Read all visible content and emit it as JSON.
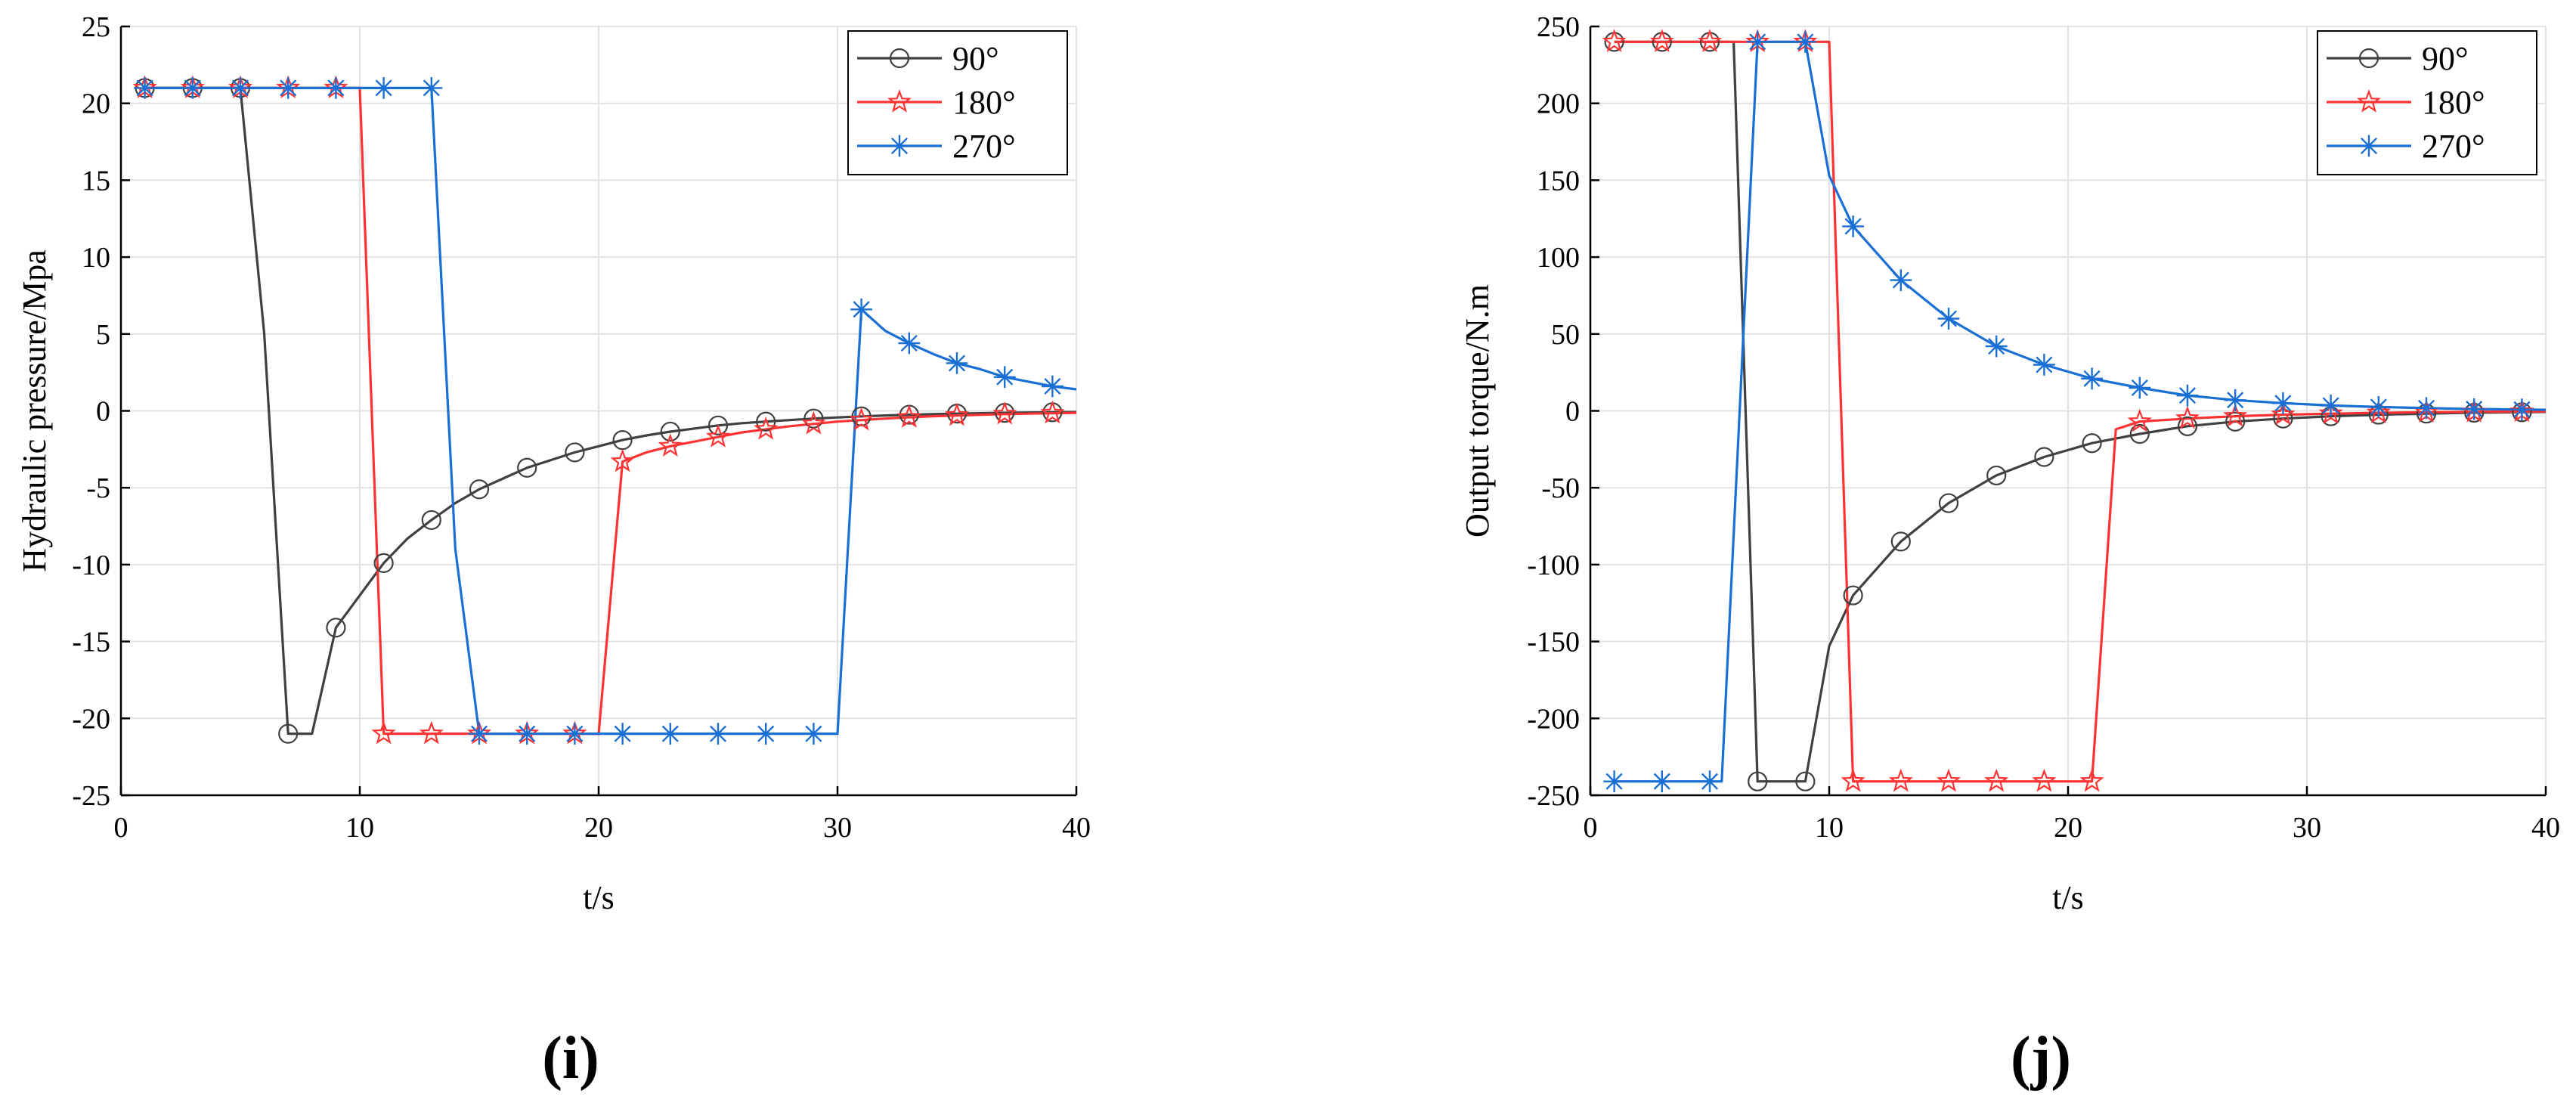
{
  "figure_labels": {
    "left": "(i)",
    "right": "(j)"
  },
  "chart_data": [
    {
      "id": "i",
      "type": "line",
      "title": "",
      "xlabel": "t/s",
      "ylabel": "Hydraulic pressure/Mpa",
      "xlim": [
        0,
        40
      ],
      "ylim": [
        -25,
        25
      ],
      "xticks": [
        0,
        10,
        20,
        30,
        40
      ],
      "yticks": [
        -25,
        -20,
        -15,
        -10,
        -5,
        0,
        5,
        10,
        15,
        20,
        25
      ],
      "grid": true,
      "legend_position": "top-right",
      "series": [
        {
          "name": "90°",
          "color": "#404040",
          "marker": "circle",
          "x": [
            1,
            2,
            3,
            4,
            5,
            6,
            7,
            7.5,
            8,
            9,
            10,
            11,
            12,
            13,
            14,
            15,
            16,
            17,
            18,
            19,
            20,
            21,
            22,
            23,
            24,
            25,
            26,
            27,
            28,
            29,
            30,
            31,
            32,
            33,
            34,
            35,
            36,
            37,
            38,
            39,
            40
          ],
          "y": [
            21,
            21,
            21,
            21,
            21,
            5,
            -21,
            -21,
            -21,
            -14.1,
            -12,
            -9.9,
            -8.3,
            -7.1,
            -6,
            -5.1,
            -4.4,
            -3.7,
            -3.2,
            -2.7,
            -2.3,
            -1.9,
            -1.6,
            -1.35,
            -1.15,
            -0.95,
            -0.8,
            -0.7,
            -0.6,
            -0.5,
            -0.43,
            -0.36,
            -0.3,
            -0.25,
            -0.21,
            -0.18,
            -0.15,
            -0.13,
            -0.11,
            -0.09,
            -0.08
          ],
          "markers_x": [
            1,
            3,
            5,
            7,
            9,
            11,
            13,
            15,
            17,
            19,
            21,
            23,
            25,
            27,
            29,
            31,
            33,
            35,
            37,
            39
          ]
        },
        {
          "name": "180°",
          "color": "#ff3333",
          "marker": "star",
          "x": [
            1,
            3,
            5,
            7,
            9,
            10,
            11,
            13,
            15,
            17,
            19,
            20,
            21,
            22,
            23,
            24,
            25,
            26,
            27,
            28,
            29,
            30,
            31,
            32,
            33,
            34,
            35,
            36,
            37,
            38,
            39,
            40
          ],
          "y": [
            21,
            21,
            21,
            21,
            21,
            21,
            -21,
            -21,
            -21,
            -21,
            -21,
            -21,
            -3.3,
            -2.7,
            -2.3,
            -2,
            -1.7,
            -1.4,
            -1.2,
            -1,
            -0.85,
            -0.7,
            -0.6,
            -0.5,
            -0.42,
            -0.35,
            -0.3,
            -0.25,
            -0.21,
            -0.18,
            -0.15,
            -0.13
          ],
          "markers_x": [
            1,
            3,
            5,
            7,
            9,
            11,
            13,
            15,
            17,
            19,
            21,
            23,
            25,
            27,
            29,
            31,
            33,
            35,
            37,
            39
          ]
        },
        {
          "name": "270°",
          "color": "#1a6fd4",
          "marker": "asterisk",
          "x": [
            1,
            3,
            5,
            7,
            9,
            11,
            13,
            14,
            15,
            17,
            19,
            21,
            23,
            25,
            27,
            29,
            30,
            31,
            32,
            33,
            34,
            35,
            36,
            37,
            38,
            39,
            40
          ],
          "y": [
            21,
            21,
            21,
            21,
            21,
            21,
            21,
            -9,
            -21,
            -21,
            -21,
            -21,
            -21,
            -21,
            -21,
            -21,
            -21,
            6.6,
            5.2,
            4.4,
            3.7,
            3.1,
            2.7,
            2.2,
            1.9,
            1.6,
            1.4
          ],
          "markers_x": [
            1,
            3,
            5,
            7,
            9,
            11,
            13,
            15,
            17,
            19,
            21,
            23,
            25,
            27,
            29,
            31,
            33,
            35,
            37,
            39
          ]
        }
      ]
    },
    {
      "id": "j",
      "type": "line",
      "title": "",
      "xlabel": "t/s",
      "ylabel": "Output torque/N.m",
      "xlim": [
        0,
        40
      ],
      "ylim": [
        -250,
        250
      ],
      "xticks": [
        0,
        10,
        20,
        30,
        40
      ],
      "yticks": [
        -250,
        -200,
        -150,
        -100,
        -50,
        0,
        50,
        100,
        150,
        200,
        250
      ],
      "grid": true,
      "legend_position": "top-right",
      "series": [
        {
          "name": "90°",
          "color": "#404040",
          "marker": "circle",
          "x": [
            1,
            3,
            5,
            6,
            7,
            9,
            10,
            11,
            13,
            15,
            17,
            19,
            21,
            23,
            25,
            27,
            29,
            31,
            33,
            35,
            37,
            39,
            40
          ],
          "y": [
            240,
            240,
            240,
            240,
            -241,
            -241,
            -153,
            -120,
            -85,
            -60,
            -42,
            -30,
            -21,
            -15,
            -10,
            -7,
            -5,
            -3.5,
            -2.5,
            -1.8,
            -1.2,
            -0.9,
            -0.7
          ],
          "markers_x": [
            1,
            3,
            5,
            7,
            9,
            11,
            13,
            15,
            17,
            19,
            21,
            23,
            25,
            27,
            29,
            31,
            33,
            35,
            37,
            39
          ]
        },
        {
          "name": "180°",
          "color": "#ff3333",
          "marker": "star",
          "x": [
            1,
            3,
            5,
            7,
            9,
            10,
            11,
            13,
            15,
            17,
            19,
            21,
            22,
            23,
            25,
            27,
            29,
            31,
            33,
            35,
            37,
            39,
            40
          ],
          "y": [
            240,
            240,
            240,
            240,
            240,
            240,
            -241,
            -241,
            -241,
            -241,
            -241,
            -241,
            -12,
            -7,
            -5,
            -3.5,
            -2.5,
            -1.8,
            -1.3,
            -0.9,
            -0.7,
            -0.5,
            -0.4
          ],
          "markers_x": [
            1,
            3,
            5,
            7,
            9,
            11,
            13,
            15,
            17,
            19,
            21,
            23,
            25,
            27,
            29,
            31,
            33,
            35,
            37,
            39
          ]
        },
        {
          "name": "270°",
          "color": "#1a6fd4",
          "marker": "asterisk",
          "x": [
            1,
            3,
            5,
            5.5,
            7,
            9,
            10,
            11,
            13,
            15,
            17,
            19,
            21,
            23,
            25,
            27,
            29,
            31,
            33,
            35,
            37,
            39,
            40
          ],
          "y": [
            -241,
            -241,
            -241,
            -241,
            240,
            240,
            153,
            120,
            85,
            60,
            42,
            30,
            21,
            15,
            10,
            7,
            5,
            3.5,
            2.5,
            1.8,
            1.2,
            0.9,
            0.7
          ],
          "markers_x": [
            1,
            3,
            5,
            7,
            9,
            11,
            13,
            15,
            17,
            19,
            21,
            23,
            25,
            27,
            29,
            31,
            33,
            35,
            37,
            39
          ]
        }
      ]
    }
  ]
}
